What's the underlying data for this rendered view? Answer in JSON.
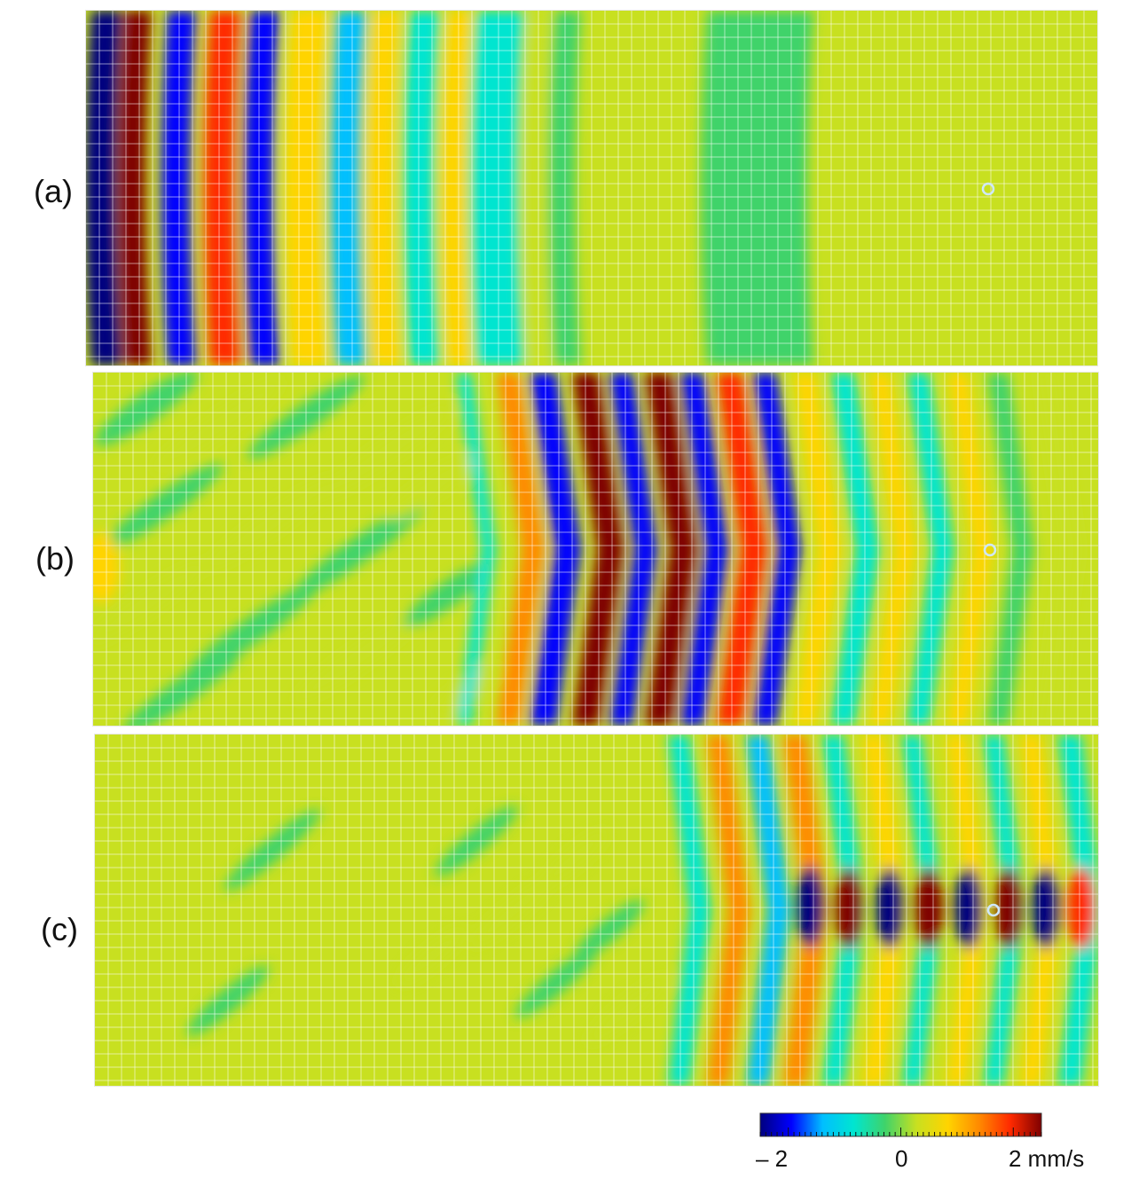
{
  "chart_data": {
    "type": "heatmap",
    "panels": [
      {
        "label": "(a)",
        "source_marker": true
      },
      {
        "label": "(b)",
        "source_marker": true
      },
      {
        "label": "(c)",
        "source_marker": true
      }
    ],
    "colorbar": {
      "range": [
        -2.5,
        2.5
      ],
      "ticks": [
        {
          "value": -2,
          "label": "– 2"
        },
        {
          "value": 0,
          "label": "0"
        },
        {
          "value": 2,
          "label": "2 mm/s"
        }
      ],
      "colors": [
        "#00007f",
        "#0000ff",
        "#00bfff",
        "#00e5d0",
        "#3fd36a",
        "#c8e020",
        "#ffd400",
        "#ff8a00",
        "#ff2a00",
        "#7f0000"
      ]
    },
    "grid": "on"
  }
}
